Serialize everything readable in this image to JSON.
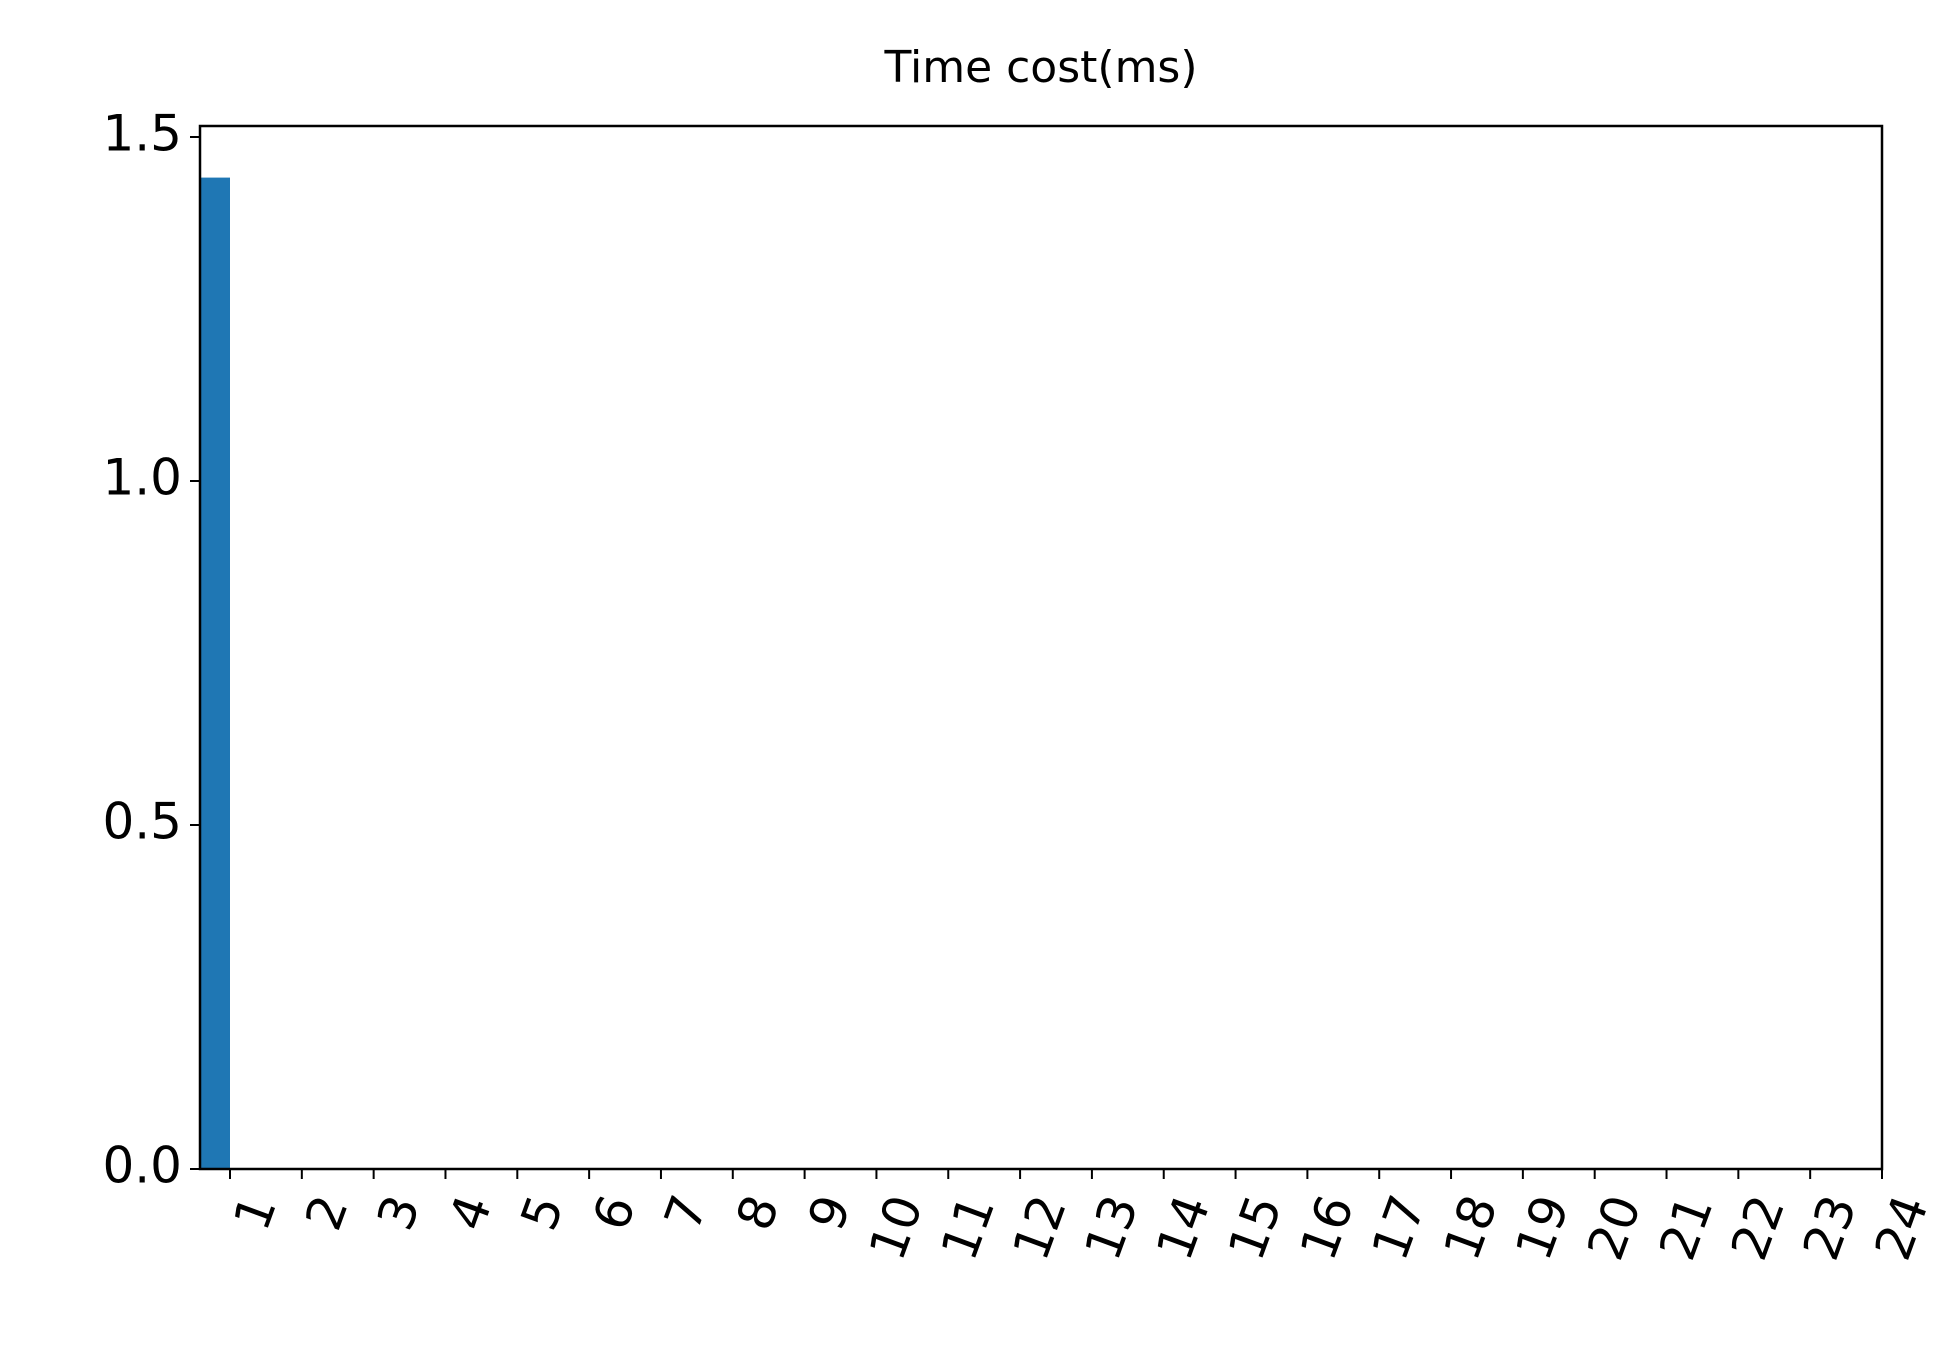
{
  "chart_data": {
    "type": "bar",
    "title": "Time cost(ms)",
    "categories": [
      "1",
      "2",
      "3",
      "4",
      "5",
      "6",
      "7",
      "8",
      "9",
      "10",
      "11",
      "12",
      "13",
      "14",
      "15",
      "16",
      "17",
      "18",
      "19",
      "20",
      "21",
      "22",
      "23",
      "24"
    ],
    "values": [
      1.441,
      0,
      0,
      0,
      0,
      0,
      0,
      0,
      0,
      0,
      0,
      0,
      0,
      0,
      0,
      0,
      0,
      0,
      0,
      0,
      0,
      0,
      0,
      0
    ],
    "color": "#1f77b4",
    "ylim": [
      0,
      1.516
    ],
    "yticks": [
      {
        "value": 0,
        "label": "0.0"
      },
      {
        "value": 0.5,
        "label": "0.5"
      },
      {
        "value": 1,
        "label": "1.0"
      },
      {
        "value": 1.5,
        "label": "1.5"
      }
    ],
    "grid": false
  }
}
